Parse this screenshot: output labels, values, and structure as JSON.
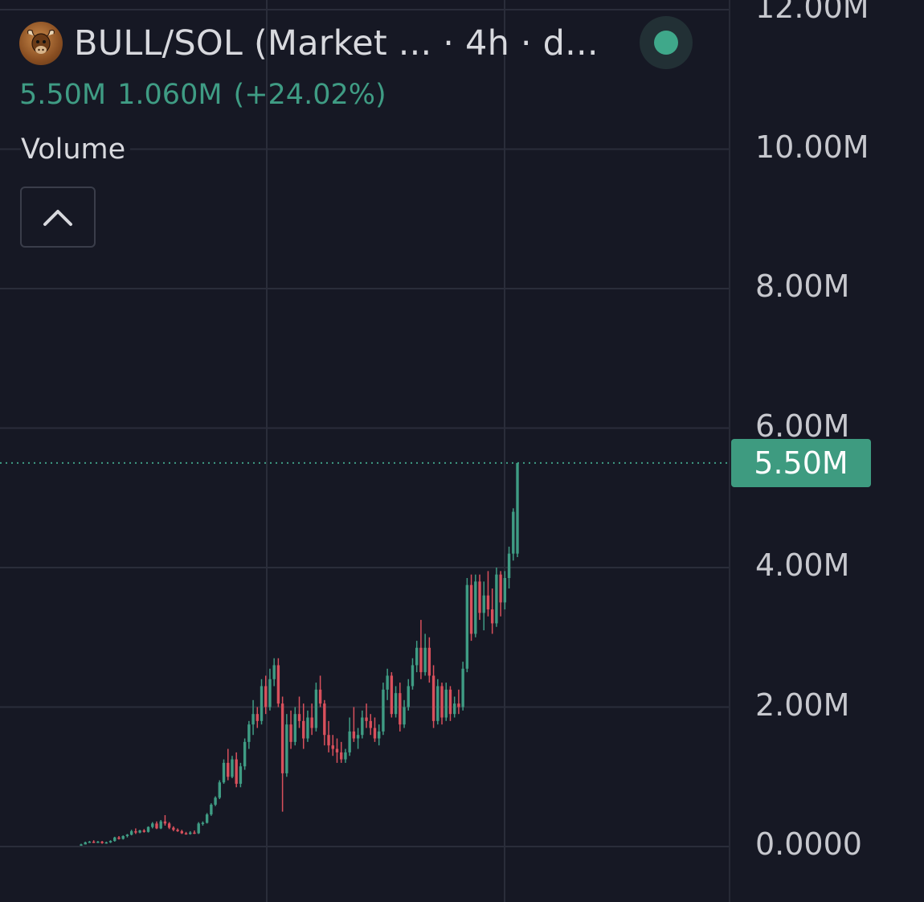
{
  "header": {
    "title": "BULL/SOL (Market ... · 4h · d...",
    "logo_icon": "bull-logo-icon",
    "status_icon": "status-dot-icon",
    "status_color": "#3fa88a"
  },
  "quote": {
    "last": "5.50M",
    "change": "1.060M",
    "change_pct": "(+24.02%)",
    "color": "#3f9c84"
  },
  "indicator": {
    "label": "Volume",
    "collapse_icon": "chevron-up-icon"
  },
  "price_tag": {
    "label": "5.50M",
    "color": "#3e9b80"
  },
  "colors": {
    "background": "#161824",
    "grid": "#2a2d3a",
    "up": "#3f9c84",
    "down": "#d9505c"
  },
  "chart_data": {
    "type": "candlestick",
    "title": "",
    "xlabel": "",
    "ylabel": "",
    "ylim": [
      0,
      12000000
    ],
    "y_ticks": [
      {
        "value": 12000000,
        "label": "12.00M"
      },
      {
        "value": 10000000,
        "label": "10.00M"
      },
      {
        "value": 8000000,
        "label": "8.00M"
      },
      {
        "value": 6000000,
        "label": "6.00M"
      },
      {
        "value": 4000000,
        "label": "4.00M"
      },
      {
        "value": 2000000,
        "label": "2.00M"
      },
      {
        "value": 0,
        "label": "0.0000"
      }
    ],
    "last_price": 5500000,
    "grid": true,
    "candles": [
      [
        0.02,
        0.04,
        0.01,
        0.03
      ],
      [
        0.03,
        0.07,
        0.03,
        0.06
      ],
      [
        0.06,
        0.08,
        0.05,
        0.07
      ],
      [
        0.07,
        0.09,
        0.05,
        0.06
      ],
      [
        0.06,
        0.08,
        0.05,
        0.07
      ],
      [
        0.07,
        0.08,
        0.04,
        0.05
      ],
      [
        0.05,
        0.07,
        0.04,
        0.06
      ],
      [
        0.06,
        0.09,
        0.05,
        0.08
      ],
      [
        0.08,
        0.14,
        0.07,
        0.13
      ],
      [
        0.13,
        0.15,
        0.1,
        0.11
      ],
      [
        0.11,
        0.16,
        0.1,
        0.15
      ],
      [
        0.15,
        0.18,
        0.13,
        0.17
      ],
      [
        0.17,
        0.24,
        0.16,
        0.22
      ],
      [
        0.22,
        0.26,
        0.18,
        0.2
      ],
      [
        0.2,
        0.24,
        0.19,
        0.23
      ],
      [
        0.23,
        0.25,
        0.2,
        0.21
      ],
      [
        0.21,
        0.29,
        0.2,
        0.28
      ],
      [
        0.28,
        0.35,
        0.26,
        0.33
      ],
      [
        0.33,
        0.36,
        0.25,
        0.26
      ],
      [
        0.26,
        0.38,
        0.25,
        0.36
      ],
      [
        0.36,
        0.45,
        0.3,
        0.33
      ],
      [
        0.33,
        0.35,
        0.25,
        0.27
      ],
      [
        0.27,
        0.29,
        0.22,
        0.24
      ],
      [
        0.24,
        0.26,
        0.21,
        0.22
      ],
      [
        0.22,
        0.24,
        0.18,
        0.19
      ],
      [
        0.19,
        0.21,
        0.17,
        0.18
      ],
      [
        0.18,
        0.22,
        0.17,
        0.2
      ],
      [
        0.2,
        0.23,
        0.18,
        0.19
      ],
      [
        0.19,
        0.35,
        0.18,
        0.33
      ],
      [
        0.33,
        0.36,
        0.3,
        0.34
      ],
      [
        0.34,
        0.48,
        0.33,
        0.46
      ],
      [
        0.46,
        0.62,
        0.44,
        0.6
      ],
      [
        0.6,
        0.72,
        0.58,
        0.7
      ],
      [
        0.7,
        0.95,
        0.68,
        0.92
      ],
      [
        0.92,
        1.25,
        0.9,
        1.2
      ],
      [
        1.2,
        1.4,
        0.95,
        1.0
      ],
      [
        1.0,
        1.3,
        0.98,
        1.25
      ],
      [
        1.25,
        1.35,
        0.85,
        0.9
      ],
      [
        0.9,
        1.2,
        0.85,
        1.15
      ],
      [
        1.15,
        1.55,
        1.1,
        1.5
      ],
      [
        1.5,
        1.8,
        1.4,
        1.75
      ],
      [
        1.75,
        2.1,
        1.6,
        1.9
      ],
      [
        1.9,
        2.0,
        1.7,
        1.8
      ],
      [
        1.8,
        2.4,
        1.75,
        2.3
      ],
      [
        2.3,
        2.45,
        1.9,
        2.0
      ],
      [
        2.0,
        2.55,
        1.95,
        2.4
      ],
      [
        2.4,
        2.7,
        2.3,
        2.6
      ],
      [
        2.6,
        2.7,
        2.0,
        2.05
      ],
      [
        2.05,
        2.15,
        0.5,
        1.05
      ],
      [
        1.05,
        1.9,
        1.0,
        1.75
      ],
      [
        1.75,
        1.95,
        1.4,
        1.5
      ],
      [
        1.5,
        2.0,
        1.45,
        1.9
      ],
      [
        1.9,
        2.15,
        1.7,
        1.8
      ],
      [
        1.8,
        2.05,
        1.4,
        1.55
      ],
      [
        1.55,
        1.95,
        1.5,
        1.85
      ],
      [
        1.85,
        2.05,
        1.6,
        1.7
      ],
      [
        1.7,
        2.35,
        1.65,
        2.25
      ],
      [
        2.25,
        2.45,
        2.0,
        2.05
      ],
      [
        2.05,
        2.1,
        1.45,
        1.6
      ],
      [
        1.6,
        1.8,
        1.35,
        1.45
      ],
      [
        1.45,
        1.6,
        1.3,
        1.4
      ],
      [
        1.4,
        1.55,
        1.2,
        1.35
      ],
      [
        1.35,
        1.5,
        1.2,
        1.25
      ],
      [
        1.25,
        1.4,
        1.2,
        1.35
      ],
      [
        1.35,
        1.85,
        1.3,
        1.65
      ],
      [
        1.65,
        2.0,
        1.5,
        1.55
      ],
      [
        1.55,
        1.7,
        1.4,
        1.6
      ],
      [
        1.6,
        1.95,
        1.55,
        1.85
      ],
      [
        1.85,
        2.05,
        1.7,
        1.8
      ],
      [
        1.8,
        1.9,
        1.6,
        1.7
      ],
      [
        1.7,
        1.85,
        1.5,
        1.55
      ],
      [
        1.55,
        1.75,
        1.45,
        1.65
      ],
      [
        1.65,
        2.35,
        1.6,
        2.25
      ],
      [
        2.25,
        2.55,
        2.1,
        2.45
      ],
      [
        2.45,
        2.5,
        1.85,
        1.9
      ],
      [
        1.9,
        2.3,
        1.85,
        2.2
      ],
      [
        2.2,
        2.35,
        1.65,
        1.75
      ],
      [
        1.75,
        2.1,
        1.7,
        2.0
      ],
      [
        2.0,
        2.4,
        1.95,
        2.3
      ],
      [
        2.3,
        2.7,
        2.25,
        2.6
      ],
      [
        2.6,
        2.95,
        2.5,
        2.85
      ],
      [
        2.85,
        3.25,
        2.4,
        2.5
      ],
      [
        2.5,
        3.05,
        2.45,
        2.85
      ],
      [
        2.85,
        3.0,
        2.35,
        2.45
      ],
      [
        2.45,
        2.6,
        1.7,
        1.8
      ],
      [
        1.8,
        2.4,
        1.75,
        2.3
      ],
      [
        2.3,
        2.35,
        1.75,
        1.85
      ],
      [
        1.85,
        2.35,
        1.8,
        2.25
      ],
      [
        2.25,
        2.3,
        1.8,
        1.9
      ],
      [
        1.9,
        2.15,
        1.85,
        2.05
      ],
      [
        2.05,
        2.25,
        1.9,
        2.0
      ],
      [
        2.0,
        2.65,
        1.95,
        2.55
      ],
      [
        2.55,
        3.85,
        2.5,
        3.75
      ],
      [
        3.75,
        3.9,
        2.95,
        3.05
      ],
      [
        3.05,
        3.9,
        3.0,
        3.8
      ],
      [
        3.8,
        3.9,
        3.25,
        3.35
      ],
      [
        3.35,
        3.8,
        3.1,
        3.6
      ],
      [
        3.6,
        3.95,
        3.3,
        3.4
      ],
      [
        3.4,
        3.7,
        3.05,
        3.2
      ],
      [
        3.2,
        4.0,
        3.15,
        3.9
      ],
      [
        3.9,
        3.95,
        3.3,
        3.5
      ],
      [
        3.5,
        3.95,
        3.4,
        3.85
      ],
      [
        3.85,
        4.3,
        3.7,
        4.2
      ],
      [
        4.2,
        4.85,
        4.1,
        4.8
      ],
      [
        4.2,
        5.5,
        4.15,
        5.5
      ]
    ]
  }
}
